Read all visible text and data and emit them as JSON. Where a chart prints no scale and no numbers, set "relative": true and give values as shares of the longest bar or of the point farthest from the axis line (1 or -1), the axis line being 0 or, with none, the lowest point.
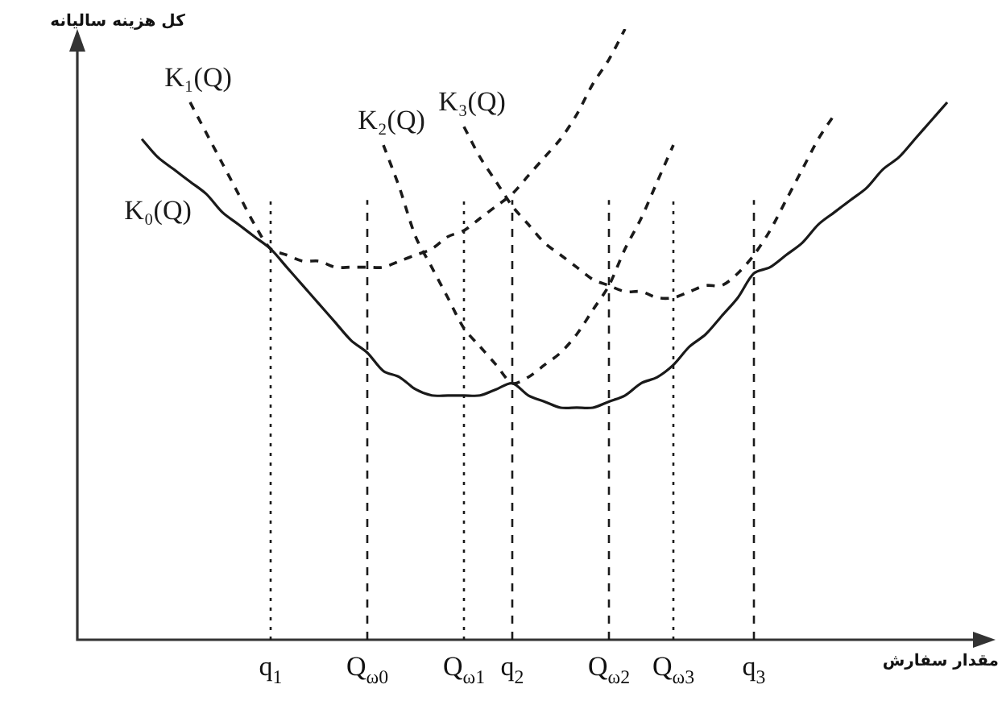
{
  "chart_data": {
    "type": "line",
    "relative": true,
    "xlabel": "مقدار سفارش",
    "ylabel": "کل هزینه سالیانه",
    "categories": [
      null,
      null,
      null,
      null,
      null,
      null,
      null,
      null,
      null,
      null,
      null,
      null,
      "q$_{1}$",
      null,
      null,
      null,
      null,
      null,
      "Q$_{ω0}$",
      null,
      null,
      null,
      null,
      null,
      "Q$_{ω1}$",
      null,
      null,
      "q$_{2}$",
      null,
      null,
      null,
      null,
      null,
      "Q$_{ω2}$",
      null,
      null,
      null,
      "Q$_{ω3}$",
      null,
      null,
      null,
      null,
      "q$_{3}$",
      null,
      null,
      null,
      null,
      null,
      null,
      null,
      null,
      null,
      null,
      null,
      null,
      null
    ],
    "series": [
      {
        "name": "K₀(Q)",
        "color": "#1a1a1a",
        "line_style": "solid",
        "values": [
          null,
          null,
          null,
          null,
          0.82,
          0.79,
          0.77,
          0.75,
          0.73,
          0.7,
          0.68,
          0.66,
          0.64,
          0.61,
          0.58,
          0.55,
          0.52,
          0.49,
          0.47,
          0.44,
          0.43,
          0.41,
          0.4,
          0.4,
          0.4,
          0.4,
          0.41,
          0.42,
          0.4,
          0.39,
          0.38,
          0.38,
          0.38,
          0.39,
          0.4,
          0.42,
          0.43,
          0.45,
          0.48,
          0.5,
          0.53,
          0.56,
          0.6,
          0.61,
          0.63,
          0.65,
          0.68,
          0.7,
          0.72,
          0.74,
          0.77,
          0.79,
          0.82,
          0.85,
          0.88,
          null
        ]
      },
      {
        "name": "K₁(Q)",
        "color": "#1a1a1a",
        "line_style": "dashed",
        "values": [
          null,
          null,
          null,
          null,
          null,
          null,
          null,
          0.88,
          0.83,
          0.78,
          0.73,
          0.68,
          0.64,
          0.63,
          0.62,
          0.62,
          0.61,
          0.61,
          0.61,
          0.61,
          0.62,
          0.63,
          0.64,
          0.66,
          0.67,
          0.69,
          0.71,
          0.73,
          0.76,
          0.79,
          0.82,
          0.86,
          0.91,
          0.95,
          1.0,
          null,
          null,
          null,
          null,
          null,
          null,
          null,
          null,
          null,
          null,
          null,
          null,
          null,
          null,
          null,
          null,
          null,
          null,
          null,
          null,
          null
        ]
      },
      {
        "name": "K₂(Q)",
        "color": "#1a1a1a",
        "line_style": "dashed",
        "values": [
          null,
          null,
          null,
          null,
          null,
          null,
          null,
          null,
          null,
          null,
          null,
          null,
          null,
          null,
          null,
          null,
          null,
          null,
          null,
          0.81,
          0.74,
          0.66,
          0.61,
          0.56,
          0.51,
          0.48,
          0.45,
          0.42,
          0.43,
          0.45,
          0.47,
          0.5,
          0.54,
          0.58,
          0.64,
          0.69,
          0.75,
          0.81,
          null,
          null,
          null,
          null,
          null,
          null,
          null,
          null,
          null,
          null,
          null,
          null,
          null,
          null,
          null,
          null,
          null,
          null
        ]
      },
      {
        "name": "K₃(Q)",
        "color": "#1a1a1a",
        "line_style": "dashed",
        "values": [
          null,
          null,
          null,
          null,
          null,
          null,
          null,
          null,
          null,
          null,
          null,
          null,
          null,
          null,
          null,
          null,
          null,
          null,
          null,
          null,
          null,
          null,
          null,
          null,
          0.84,
          0.79,
          0.75,
          0.71,
          0.68,
          0.65,
          0.63,
          0.61,
          0.59,
          0.58,
          0.57,
          0.57,
          0.56,
          0.56,
          0.57,
          0.58,
          0.58,
          0.6,
          0.63,
          0.67,
          0.72,
          0.77,
          0.82,
          0.86,
          null,
          null,
          null,
          null,
          null,
          null,
          null,
          null
        ]
      }
    ],
    "ref_lines": [
      {
        "axis": "x",
        "value": "q$_{1}$",
        "line_style": "dotted",
        "color": "#1a1a1a"
      },
      {
        "axis": "x",
        "value": "Q$_{ω0}$",
        "line_style": "dashed",
        "color": "#1a1a1a"
      },
      {
        "axis": "x",
        "value": "Q$_{ω1}$",
        "line_style": "dotted",
        "color": "#1a1a1a"
      },
      {
        "axis": "x",
        "value": "q$_{2}$",
        "line_style": "dashed",
        "color": "#1a1a1a"
      },
      {
        "axis": "x",
        "value": "Q$_{ω2}$",
        "line_style": "dashed",
        "color": "#1a1a1a"
      },
      {
        "axis": "x",
        "value": "Q$_{ω3}$",
        "line_style": "dotted",
        "color": "#1a1a1a"
      },
      {
        "axis": "x",
        "value": "q$_{3}$",
        "line_style": "dashed",
        "color": "#1a1a1a"
      }
    ]
  }
}
